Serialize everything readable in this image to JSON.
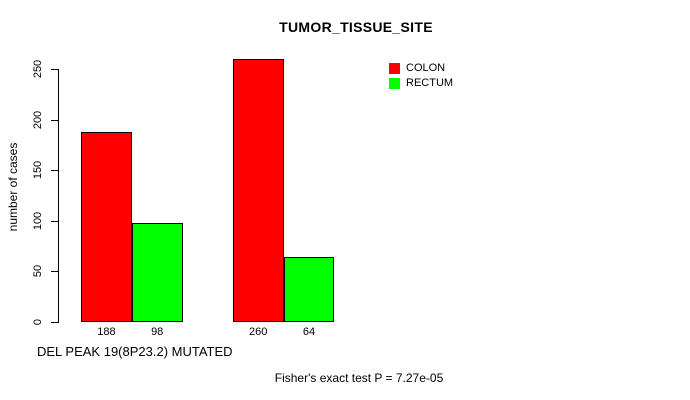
{
  "chart_data": {
    "type": "bar",
    "title": "TUMOR_TISSUE_SITE",
    "ylabel": "number of cases",
    "xlabel": "DEL PEAK 19(8P23.2) MUTATED",
    "annotation": "Fisher's exact test P = 7.27e-05",
    "series": [
      {
        "name": "COLON",
        "color": "#ff0000",
        "values": [
          188,
          260
        ]
      },
      {
        "name": "RECTUM",
        "color": "#00ff00",
        "values": [
          98,
          64
        ]
      }
    ],
    "yticks": [
      0,
      50,
      100,
      150,
      200,
      250
    ],
    "ylim": [
      0,
      260
    ],
    "bar_value_labels": [
      188,
      98,
      260,
      64
    ],
    "legend_position": "top-right",
    "grid": false,
    "colors": {
      "background": "#ffffff",
      "axis": "#000000",
      "text": "#000000"
    }
  }
}
